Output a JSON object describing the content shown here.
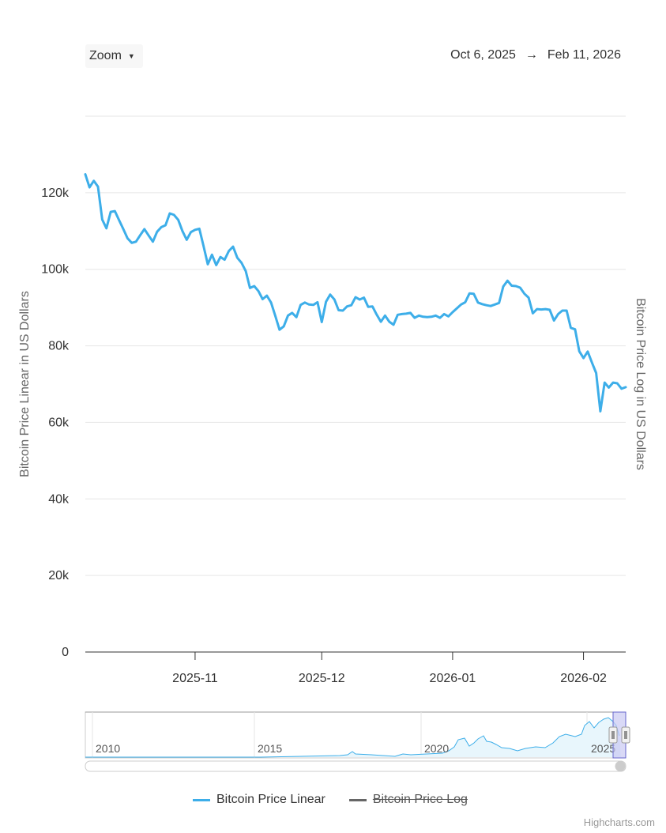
{
  "toolbar": {
    "zoom_label": "Zoom",
    "range_from": "Oct 6, 2025",
    "range_arrow": "→",
    "range_to": "Feb 11, 2026"
  },
  "legend": [
    {
      "label": "Bitcoin Price Linear",
      "color": "#3daee9",
      "visible": true
    },
    {
      "label": "Bitcoin Price Log",
      "color": "#666666",
      "visible": false
    }
  ],
  "credits": "Highcharts.com",
  "colors": {
    "series": "#3daee9",
    "grid": "#e6e6e6",
    "navigator_mask": "#c9c9f2"
  },
  "chart_data": {
    "type": "line",
    "ylabel": "Bitcoin Price Linear in US Dollars",
    "ylabel_right": "Bitcoin Price Log in US Dollars",
    "ylim": [
      0,
      140000
    ],
    "yticks": [
      0,
      20000,
      40000,
      60000,
      80000,
      100000,
      120000
    ],
    "ytick_labels": [
      "0",
      "20k",
      "40k",
      "60k",
      "80k",
      "100k",
      "120k"
    ],
    "x_range": [
      "2025-10-06",
      "2026-02-11"
    ],
    "xticks": [
      "2025-11-01",
      "2025-12-01",
      "2026-01-01",
      "2026-02-01"
    ],
    "xtick_labels": [
      "2025-11",
      "2025-12",
      "2026-01",
      "2026-02"
    ],
    "grid": true,
    "legend_position": "bottom-center",
    "series": [
      {
        "name": "Bitcoin Price Linear",
        "x": [
          "2025-10-06",
          "2025-10-07",
          "2025-10-08",
          "2025-10-09",
          "2025-10-10",
          "2025-10-11",
          "2025-10-12",
          "2025-10-13",
          "2025-10-14",
          "2025-10-15",
          "2025-10-16",
          "2025-10-17",
          "2025-10-18",
          "2025-10-19",
          "2025-10-20",
          "2025-10-21",
          "2025-10-22",
          "2025-10-23",
          "2025-10-24",
          "2025-10-25",
          "2025-10-26",
          "2025-10-27",
          "2025-10-28",
          "2025-10-29",
          "2025-10-30",
          "2025-10-31",
          "2025-11-01",
          "2025-11-02",
          "2025-11-03",
          "2025-11-04",
          "2025-11-05",
          "2025-11-06",
          "2025-11-07",
          "2025-11-08",
          "2025-11-09",
          "2025-11-10",
          "2025-11-11",
          "2025-11-12",
          "2025-11-13",
          "2025-11-14",
          "2025-11-15",
          "2025-11-16",
          "2025-11-17",
          "2025-11-18",
          "2025-11-19",
          "2025-11-20",
          "2025-11-21",
          "2025-11-22",
          "2025-11-23",
          "2025-11-24",
          "2025-11-25",
          "2025-11-26",
          "2025-11-27",
          "2025-11-28",
          "2025-11-29",
          "2025-11-30",
          "2025-12-01",
          "2025-12-02",
          "2025-12-03",
          "2025-12-04",
          "2025-12-05",
          "2025-12-06",
          "2025-12-07",
          "2025-12-08",
          "2025-12-09",
          "2025-12-10",
          "2025-12-11",
          "2025-12-12",
          "2025-12-13",
          "2025-12-14",
          "2025-12-15",
          "2025-12-16",
          "2025-12-17",
          "2025-12-18",
          "2025-12-19",
          "2025-12-20",
          "2025-12-21",
          "2025-12-22",
          "2025-12-23",
          "2025-12-24",
          "2025-12-25",
          "2025-12-26",
          "2025-12-27",
          "2025-12-28",
          "2025-12-29",
          "2025-12-30",
          "2025-12-31",
          "2026-01-01",
          "2026-01-02",
          "2026-01-03",
          "2026-01-04",
          "2026-01-05",
          "2026-01-06",
          "2026-01-07",
          "2026-01-08",
          "2026-01-09",
          "2026-01-10",
          "2026-01-11",
          "2026-01-12",
          "2026-01-13",
          "2026-01-14",
          "2026-01-15",
          "2026-01-16",
          "2026-01-17",
          "2026-01-18",
          "2026-01-19",
          "2026-01-20",
          "2026-01-21",
          "2026-01-22",
          "2026-01-23",
          "2026-01-24",
          "2026-01-25",
          "2026-01-26",
          "2026-01-27",
          "2026-01-28",
          "2026-01-29",
          "2026-01-30",
          "2026-01-31",
          "2026-02-01",
          "2026-02-02",
          "2026-02-03",
          "2026-02-04",
          "2026-02-05",
          "2026-02-06",
          "2026-02-07",
          "2026-02-08",
          "2026-02-09",
          "2026-02-10",
          "2026-02-11"
        ],
        "values": [
          124800,
          121400,
          123100,
          121600,
          113000,
          110700,
          115000,
          115200,
          112800,
          110500,
          108100,
          106900,
          107200,
          108900,
          110500,
          108800,
          107200,
          109800,
          111000,
          111500,
          114600,
          114200,
          112900,
          110000,
          107700,
          109700,
          110300,
          110600,
          106100,
          101300,
          103800,
          101100,
          103200,
          102500,
          104800,
          105900,
          103000,
          101700,
          99500,
          95100,
          95600,
          94300,
          92200,
          93100,
          91300,
          87800,
          84200,
          85100,
          87900,
          88600,
          87500,
          90700,
          91300,
          90800,
          90700,
          91400,
          86200,
          91500,
          93400,
          92100,
          89300,
          89200,
          90300,
          90600,
          92700,
          92100,
          92600,
          90200,
          90300,
          88200,
          86300,
          87900,
          86300,
          85500,
          88100,
          88300,
          88400,
          88600,
          87300,
          87900,
          87600,
          87500,
          87600,
          87900,
          87300,
          88300,
          87700,
          88800,
          89800,
          90800,
          91400,
          93700,
          93600,
          91300,
          90900,
          90600,
          90400,
          90800,
          91200,
          95500,
          97000,
          95700,
          95600,
          95200,
          93600,
          92600,
          88500,
          89600,
          89500,
          89600,
          89400,
          86600,
          88300,
          89200,
          89200,
          84700,
          84300,
          78600,
          76800,
          78500,
          75600,
          72900,
          62900,
          70400,
          69100,
          70400,
          70200,
          68800,
          69200
        ]
      }
    ]
  },
  "navigator": {
    "year_labels": [
      "2010",
      "2015",
      "2020",
      "2025"
    ]
  }
}
